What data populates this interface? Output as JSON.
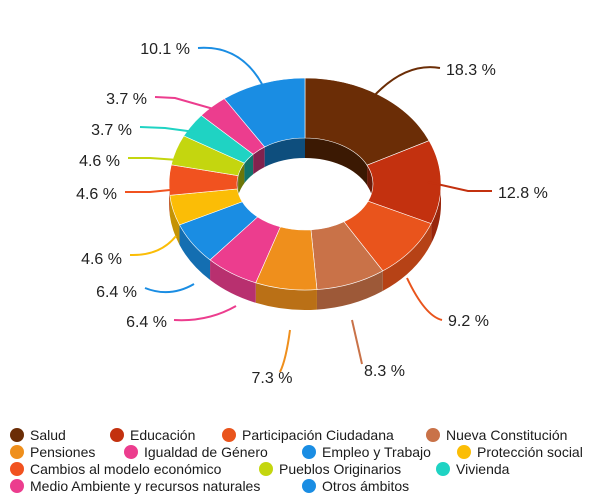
{
  "chart_data": {
    "type": "pie",
    "donut": true,
    "style": "3d",
    "unit": " %",
    "slices": [
      {
        "name": "Salud",
        "value": 18.3,
        "color": "#6b2d06"
      },
      {
        "name": "Educación",
        "value": 12.8,
        "color": "#c3310f"
      },
      {
        "name": "Participación Ciudadana",
        "value": 9.2,
        "color": "#e9541c"
      },
      {
        "name": "Nueva Constitución",
        "value": 8.3,
        "color": "#c97248"
      },
      {
        "name": "Pensiones",
        "value": 7.3,
        "color": "#ef8f1c"
      },
      {
        "name": "Igualdad de Género",
        "value": 6.4,
        "color": "#ec3d8e"
      },
      {
        "name": "Empleo y Trabajo",
        "value": 6.4,
        "color": "#1a8de3"
      },
      {
        "name": "Protección social",
        "value": 4.6,
        "color": "#fbbd06"
      },
      {
        "name": "Cambios al modelo económico",
        "value": 4.6,
        "color": "#f1521f"
      },
      {
        "name": "Pueblos Originarios",
        "value": 4.6,
        "color": "#c4d60f"
      },
      {
        "name": "Vivienda",
        "value": 3.7,
        "color": "#1fd3c3"
      },
      {
        "name": "Medio Ambiente y recursos naturales",
        "value": 3.7,
        "color": "#ec3d8e"
      },
      {
        "name": "Otros ámbitos",
        "value": 10.1,
        "color": "#1a8de3"
      }
    ],
    "legend_position": "bottom"
  }
}
